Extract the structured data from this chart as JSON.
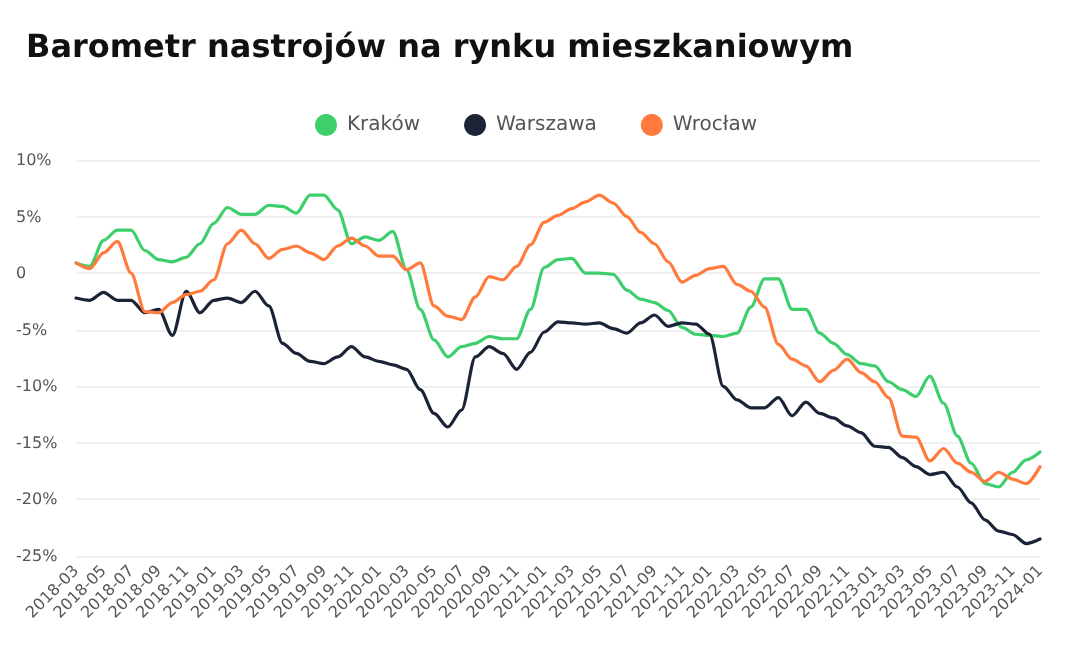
{
  "chart_data": {
    "type": "line",
    "title": "Barometr nastrojów na rynku mieszkaniowym",
    "categories": [
      "2018-03",
      null,
      "2018-05",
      null,
      "2018-07",
      null,
      "2018-09",
      null,
      "2018-11",
      null,
      "2019-01",
      null,
      "2019-03",
      null,
      "2019-05",
      null,
      "2019-07",
      null,
      "2019-09",
      null,
      "2019-11",
      null,
      "2020-01",
      null,
      "2020-03",
      null,
      "2020-05",
      null,
      "2020-07",
      null,
      "2020-09",
      null,
      "2020-11",
      null,
      "2021-01",
      null,
      "2021-03",
      null,
      "2021-05",
      null,
      "2021-07",
      null,
      "2021-09",
      null,
      "2021-11",
      null,
      "2022-01",
      null,
      "2022-03",
      null,
      "2022-05",
      null,
      "2022-07",
      null,
      "2022-09",
      null,
      "2022-11",
      null,
      "2023-01",
      null,
      "2023-03",
      null,
      "2023-05",
      null,
      "2023-07",
      null,
      "2023-09",
      null,
      "2023-11",
      null,
      "2024-01"
    ],
    "series": [
      {
        "name": "Kraków",
        "color": "#3ecf6c",
        "values": [
          0.9,
          0.6,
          2.9,
          3.8,
          3.8,
          2.0,
          1.2,
          1.0,
          1.4,
          2.6,
          4.4,
          5.8,
          5.2,
          5.2,
          6.0,
          5.9,
          5.3,
          6.9,
          6.9,
          5.6,
          2.6,
          3.2,
          2.9,
          3.7,
          0.3,
          -3.2,
          -5.9,
          -7.4,
          -6.5,
          -6.2,
          -5.6,
          -5.8,
          -5.8,
          -3.2,
          0.5,
          1.2,
          1.3,
          0.0,
          0.0,
          -0.1,
          -1.5,
          -2.3,
          -2.6,
          -3.3,
          -4.8,
          -5.4,
          -5.5,
          -5.6,
          -5.3,
          -3.0,
          -0.5,
          -0.5,
          -3.2,
          -3.2,
          -5.3,
          -6.2,
          -7.2,
          -8.0,
          -8.2,
          -9.6,
          -10.3,
          -10.9,
          -9.1,
          -11.5,
          -14.4,
          -16.8,
          -18.6,
          -18.9,
          -17.6,
          -16.5,
          -15.8
        ]
      },
      {
        "name": "Warszawa",
        "color": "#1b2436",
        "values": [
          -2.2,
          -2.4,
          -1.7,
          -2.4,
          -2.4,
          -3.5,
          -3.2,
          -5.5,
          -1.6,
          -3.5,
          -2.4,
          -2.2,
          -2.6,
          -1.6,
          -2.9,
          -6.2,
          -7.1,
          -7.8,
          -8.0,
          -7.4,
          -6.5,
          -7.4,
          -7.8,
          -8.1,
          -8.5,
          -10.3,
          -12.4,
          -13.6,
          -12.1,
          -7.4,
          -6.5,
          -7.1,
          -8.5,
          -7.0,
          -5.2,
          -4.3,
          -4.4,
          -4.5,
          -4.4,
          -4.9,
          -5.3,
          -4.4,
          -3.7,
          -4.7,
          -4.4,
          -4.5,
          -5.4,
          -10.0,
          -11.2,
          -11.9,
          -11.9,
          -11.0,
          -12.6,
          -11.4,
          -12.4,
          -12.8,
          -13.5,
          -14.1,
          -15.3,
          -15.4,
          -16.3,
          -17.1,
          -17.8,
          -17.6,
          -18.9,
          -20.3,
          -21.8,
          -22.8,
          -23.1,
          -23.9,
          -23.5
        ]
      },
      {
        "name": "Wrocław",
        "color": "#ff7a3c",
        "values": [
          0.9,
          0.4,
          1.8,
          2.8,
          0.0,
          -3.4,
          -3.5,
          -2.6,
          -1.9,
          -1.6,
          -0.6,
          2.6,
          3.8,
          2.6,
          1.3,
          2.1,
          2.4,
          1.8,
          1.2,
          2.4,
          3.1,
          2.4,
          1.5,
          1.5,
          0.3,
          0.9,
          -2.9,
          -3.8,
          -4.1,
          -2.1,
          -0.3,
          -0.6,
          0.6,
          2.5,
          4.5,
          5.1,
          5.7,
          6.3,
          6.9,
          6.2,
          5.0,
          3.6,
          2.6,
          1.0,
          -0.8,
          -0.2,
          0.4,
          0.6,
          -1.0,
          -1.6,
          -3.0,
          -6.3,
          -7.6,
          -8.2,
          -9.6,
          -8.6,
          -7.6,
          -8.8,
          -9.6,
          -11.0,
          -14.4,
          -14.5,
          -16.6,
          -15.5,
          -16.8,
          -17.6,
          -18.4,
          -17.6,
          -18.2,
          -18.6,
          -17.1
        ]
      }
    ],
    "ylim": [
      -25,
      10
    ],
    "yticks": [
      {
        "value": -25,
        "label": "-25%"
      },
      {
        "value": -20,
        "label": "-20%"
      },
      {
        "value": -15,
        "label": "-15%"
      },
      {
        "value": -10,
        "label": "-10%"
      },
      {
        "value": -5,
        "label": "-5%"
      },
      {
        "value": 0,
        "label": "0"
      },
      {
        "value": 5,
        "label": "5%"
      },
      {
        "value": 10,
        "label": "10%"
      }
    ],
    "grid": "y",
    "legend": "top",
    "marker": "none",
    "line_style": "solid"
  }
}
